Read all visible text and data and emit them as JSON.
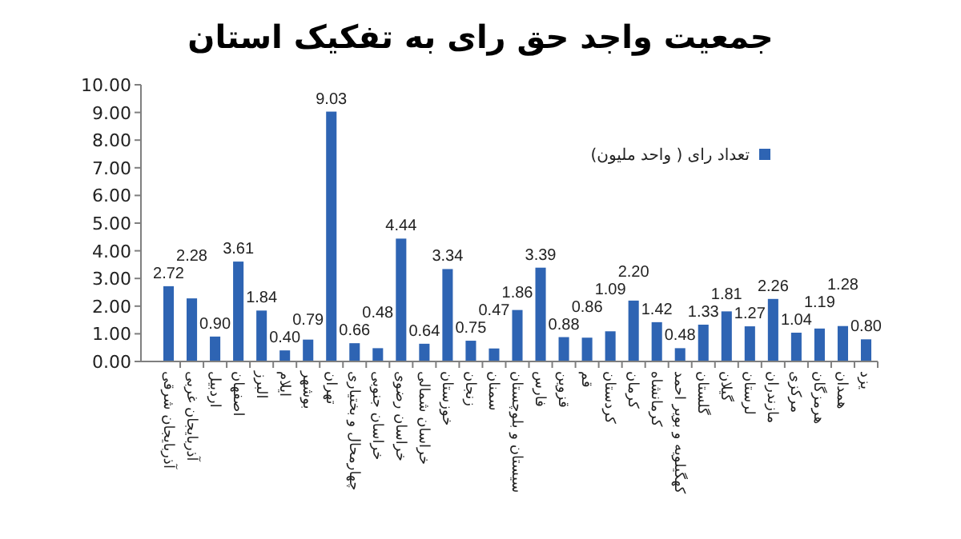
{
  "chart_data": {
    "type": "bar",
    "title": "جمعیت واجد حق رای به تفکیک استان",
    "categories": [
      "آذربایجان شرقی",
      "آذربایجان غربی",
      "اردبیل",
      "اصفهان",
      "البرز",
      "ایلام",
      "بوشهر",
      "تهران",
      "چهارمحال و بختیاری",
      "خراسان جنوبی",
      "خراسان رضوی",
      "خراسان شمالی",
      "خوزستان",
      "زنجان",
      "سمنان",
      "سیستان و بلوچستان",
      "فارس",
      "قزوین",
      "قم",
      "کردستان",
      "کرمان",
      "کرمانشاه",
      "کهگیلویه و بویر احمد",
      "گلستان",
      "گیلان",
      "لرستان",
      "مازندران",
      "مرکزی",
      "هرمزگان",
      "همدان",
      "یزد"
    ],
    "series": [
      {
        "name": "تعداد رای ( واحد ملیون)",
        "color": "#2e64b3",
        "values": [
          2.72,
          2.28,
          0.9,
          3.61,
          1.84,
          0.4,
          0.79,
          9.03,
          0.66,
          0.48,
          4.44,
          0.64,
          3.34,
          0.75,
          0.47,
          1.86,
          3.39,
          0.88,
          0.86,
          1.09,
          2.2,
          1.42,
          0.48,
          1.33,
          1.81,
          1.27,
          2.26,
          1.04,
          1.19,
          1.28,
          0.8
        ],
        "value_labels": [
          "2.72",
          "2.28",
          "0.90",
          "3.61",
          "1.84",
          "0.40",
          "0.79",
          "9.03",
          "0.66",
          "0.48",
          "4.44",
          "0.64",
          "3.34",
          "0.75",
          "0.47",
          "1.86",
          "3.39",
          "0.88",
          "0.86",
          "1.09",
          "2.20",
          "1.42",
          "0.48",
          "1.33",
          "1.81",
          "1.27",
          "2.26",
          "1.04",
          "1.19",
          "1.28",
          "0.80"
        ]
      }
    ],
    "ylim": [
      0,
      10
    ],
    "yticks": [
      {
        "value": 0,
        "label": "0.00"
      },
      {
        "value": 1,
        "label": "1.00"
      },
      {
        "value": 2,
        "label": "2.00"
      },
      {
        "value": 3,
        "label": "3.00"
      },
      {
        "value": 4,
        "label": "4.00"
      },
      {
        "value": 5,
        "label": "5.00"
      },
      {
        "value": 6,
        "label": "6.00"
      },
      {
        "value": 7,
        "label": "7.00"
      },
      {
        "value": 8,
        "label": "8.00"
      },
      {
        "value": 9,
        "label": "9.00"
      },
      {
        "value": 10,
        "label": "10.00"
      }
    ],
    "grid": false,
    "legend": "top right"
  }
}
